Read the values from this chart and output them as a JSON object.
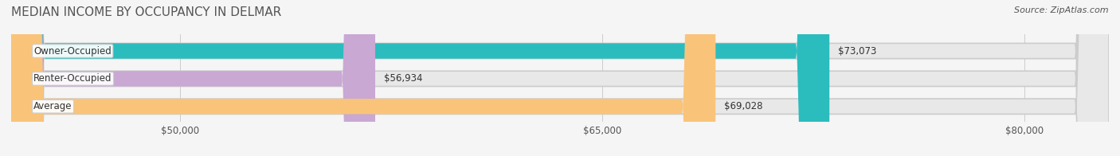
{
  "title": "MEDIAN INCOME BY OCCUPANCY IN DELMAR",
  "source": "Source: ZipAtlas.com",
  "categories": [
    "Owner-Occupied",
    "Renter-Occupied",
    "Average"
  ],
  "values": [
    73073,
    56934,
    69028
  ],
  "bar_colors": [
    "#2bbcbe",
    "#c9a8d4",
    "#f9c47a"
  ],
  "bar_labels": [
    "$73,073",
    "$56,934",
    "$69,028"
  ],
  "xmin": 44000,
  "xmax": 83000,
  "xticks": [
    50000,
    65000,
    80000
  ],
  "xtick_labels": [
    "$50,000",
    "$65,000",
    "$80,000"
  ],
  "background_color": "#f5f5f5",
  "bar_bg_color": "#e8e8e8",
  "title_fontsize": 11,
  "label_fontsize": 8.5,
  "value_fontsize": 8.5,
  "source_fontsize": 8
}
